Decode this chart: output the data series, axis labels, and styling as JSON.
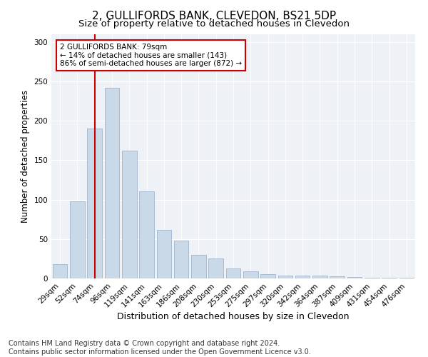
{
  "title": "2, GULLIFORDS BANK, CLEVEDON, BS21 5DP",
  "subtitle": "Size of property relative to detached houses in Clevedon",
  "xlabel": "Distribution of detached houses by size in Clevedon",
  "ylabel": "Number of detached properties",
  "bar_labels": [
    "29sqm",
    "52sqm",
    "74sqm",
    "96sqm",
    "119sqm",
    "141sqm",
    "163sqm",
    "186sqm",
    "208sqm",
    "230sqm",
    "253sqm",
    "275sqm",
    "297sqm",
    "320sqm",
    "342sqm",
    "364sqm",
    "387sqm",
    "409sqm",
    "431sqm",
    "454sqm",
    "476sqm"
  ],
  "bar_values": [
    18,
    98,
    190,
    242,
    162,
    110,
    62,
    48,
    30,
    25,
    13,
    9,
    5,
    4,
    4,
    4,
    3,
    2,
    1,
    1,
    1
  ],
  "bar_color": "#c9d9e8",
  "bar_edge_color": "#a0b4cc",
  "vline_x": 2,
  "vline_color": "#cc0000",
  "annotation_text": "2 GULLIFORDS BANK: 79sqm\n← 14% of detached houses are smaller (143)\n86% of semi-detached houses are larger (872) →",
  "annotation_box_color": "white",
  "annotation_box_edge_color": "#cc0000",
  "ylim": [
    0,
    310
  ],
  "yticks": [
    0,
    50,
    100,
    150,
    200,
    250,
    300
  ],
  "bg_color": "#eef2f7",
  "footer_text": "Contains HM Land Registry data © Crown copyright and database right 2024.\nContains public sector information licensed under the Open Government Licence v3.0.",
  "title_fontsize": 11,
  "subtitle_fontsize": 9.5,
  "xlabel_fontsize": 9,
  "ylabel_fontsize": 8.5,
  "footer_fontsize": 7,
  "tick_fontsize": 7.5,
  "annot_fontsize": 7.5
}
